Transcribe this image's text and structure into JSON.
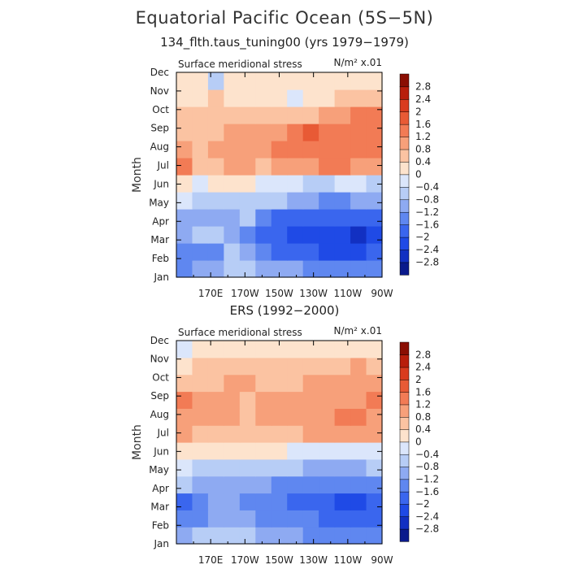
{
  "figure": {
    "title": "Equatorial Pacific Ocean (5S−5N)"
  },
  "chart_data": [
    {
      "type": "heatmap",
      "title": "134_flth.taus_tuning00 (yrs 1979−1979)",
      "inner_title": "Surface meridional stress",
      "units": "N/m² x.01",
      "ylabel": "Month",
      "x_ticks": [
        "170E",
        "170W",
        "150W",
        "130W",
        "110W",
        "90W"
      ],
      "y_ticks": [
        "Jan",
        "Feb",
        "Mar",
        "Apr",
        "May",
        "Jun",
        "Jul",
        "Aug",
        "Sep",
        "Oct",
        "Nov",
        "Dec"
      ],
      "colorbar_labels": [
        "2.8",
        "2.4",
        "2",
        "1.6",
        "1.2",
        "0.8",
        "0.4",
        "0",
        "−0.4",
        "−0.8",
        "−1.2",
        "−1.6",
        "−2",
        "−2.4",
        "−2.8"
      ],
      "colorbar_levels": [
        -2.8,
        -2.4,
        -2.0,
        -1.6,
        -1.2,
        -0.8,
        -0.4,
        0,
        0.4,
        0.8,
        1.2,
        1.6,
        2.0,
        2.4,
        2.8
      ],
      "colors": [
        "#0a1a8c",
        "#1230c2",
        "#1f4ae6",
        "#3a66ee",
        "#5f87f0",
        "#8eaaf2",
        "#b7cdf6",
        "#dbe6fb",
        "#fde3cd",
        "#fbc3a2",
        "#f7a07a",
        "#f27b55",
        "#e85a35",
        "#d93b1e",
        "#b81e0b",
        "#8a0e02"
      ],
      "lon_columns": [
        "150E",
        "160E",
        "170E",
        "180",
        "170W",
        "160W",
        "150W",
        "140W",
        "130W",
        "120W",
        "110W",
        "100W",
        "90W"
      ],
      "months": [
        "Jan",
        "Feb",
        "Mar",
        "Apr",
        "May",
        "Jun",
        "Jul",
        "Aug",
        "Sep",
        "Oct",
        "Nov",
        "Dec"
      ],
      "values": [
        [
          -1.5,
          -1.2,
          -0.9,
          -0.6,
          -0.7,
          -0.9,
          -1.2,
          -1.2,
          -1.5,
          -1.5,
          -1.6,
          -1.6,
          -1.4
        ],
        [
          -1.6,
          -1.3,
          -1.3,
          -0.8,
          -1.2,
          -1.5,
          -1.7,
          -1.9,
          -2.0,
          -2.1,
          -2.1,
          -2.2,
          -2.0
        ],
        [
          -1.2,
          -0.5,
          -0.7,
          -1.0,
          -1.3,
          -1.7,
          -2.0,
          -2.2,
          -2.3,
          -2.3,
          -2.4,
          -2.6,
          -2.3
        ],
        [
          -0.9,
          -0.9,
          -1.0,
          -1.0,
          -0.7,
          -1.3,
          -1.7,
          -1.9,
          -2.0,
          -1.9,
          -1.9,
          -1.8,
          -1.7
        ],
        [
          -0.4,
          -0.5,
          -0.5,
          -0.5,
          -0.6,
          -0.7,
          -0.7,
          -1.0,
          -1.2,
          -1.3,
          -1.3,
          -1.2,
          -1.1
        ],
        [
          0.2,
          -0.3,
          0.1,
          0.2,
          0.2,
          -0.1,
          -0.2,
          -0.4,
          -0.5,
          -0.5,
          -0.4,
          -0.4,
          -0.5
        ],
        [
          1.2,
          0.6,
          0.6,
          0.9,
          0.8,
          0.7,
          0.8,
          0.9,
          1.0,
          1.4,
          1.3,
          1.1,
          1.0
        ],
        [
          0.8,
          0.7,
          0.8,
          0.9,
          0.9,
          1.0,
          1.2,
          1.3,
          1.4,
          1.3,
          1.4,
          1.4,
          1.5
        ],
        [
          0.5,
          0.6,
          0.7,
          0.8,
          0.9,
          0.9,
          1.0,
          1.2,
          1.6,
          1.5,
          1.2,
          1.3,
          1.4
        ],
        [
          0.4,
          0.5,
          0.5,
          0.7,
          0.7,
          0.6,
          0.5,
          0.6,
          0.7,
          0.8,
          0.9,
          1.2,
          1.4
        ],
        [
          0.3,
          0.3,
          0.4,
          0.3,
          0.3,
          0.3,
          0.2,
          -0.1,
          0.2,
          0.3,
          0.4,
          0.5,
          0.6
        ],
        [
          0.1,
          0.3,
          -0.6,
          0.1,
          0.2,
          0.1,
          0.0,
          0.0,
          0.1,
          0.2,
          0.2,
          0.3,
          0.3
        ]
      ]
    },
    {
      "type": "heatmap",
      "title": "ERS (1992−2000)",
      "inner_title": "Surface meridional stress",
      "units": "N/m² x.01",
      "ylabel": "Month",
      "x_ticks": [
        "170E",
        "170W",
        "150W",
        "130W",
        "110W",
        "90W"
      ],
      "y_ticks": [
        "Jan",
        "Feb",
        "Mar",
        "Apr",
        "May",
        "Jun",
        "Jul",
        "Aug",
        "Sep",
        "Oct",
        "Nov",
        "Dec"
      ],
      "colorbar_labels": [
        "2.8",
        "2.4",
        "2",
        "1.6",
        "1.2",
        "0.8",
        "0.4",
        "0",
        "−0.4",
        "−0.8",
        "−1.2",
        "−1.6",
        "−2",
        "−2.4",
        "−2.8"
      ],
      "colorbar_levels": [
        -2.8,
        -2.4,
        -2.0,
        -1.6,
        -1.2,
        -0.8,
        -0.4,
        0,
        0.4,
        0.8,
        1.2,
        1.6,
        2.0,
        2.4,
        2.8
      ],
      "colors": [
        "#0a1a8c",
        "#1230c2",
        "#1f4ae6",
        "#3a66ee",
        "#5f87f0",
        "#8eaaf2",
        "#b7cdf6",
        "#dbe6fb",
        "#fde3cd",
        "#fbc3a2",
        "#f7a07a",
        "#f27b55",
        "#e85a35",
        "#d93b1e",
        "#b81e0b",
        "#8a0e02"
      ],
      "lon_columns": [
        "150E",
        "160E",
        "170E",
        "180",
        "170W",
        "160W",
        "150W",
        "140W",
        "130W",
        "120W",
        "110W",
        "100W",
        "90W"
      ],
      "months": [
        "Jan",
        "Feb",
        "Mar",
        "Apr",
        "May",
        "Jun",
        "Jul",
        "Aug",
        "Sep",
        "Oct",
        "Nov",
        "Dec"
      ],
      "values": [
        [
          -1.0,
          -0.8,
          -0.7,
          -0.6,
          -0.8,
          -0.9,
          -1.1,
          -1.2,
          -1.3,
          -1.3,
          -1.4,
          -1.5,
          -1.4
        ],
        [
          -1.6,
          -1.3,
          -1.2,
          -1.1,
          -1.2,
          -1.3,
          -1.4,
          -1.5,
          -1.6,
          -1.7,
          -1.8,
          -1.9,
          -1.8
        ],
        [
          -1.7,
          -1.3,
          -1.0,
          -1.1,
          -1.3,
          -1.5,
          -1.6,
          -1.7,
          -1.8,
          -2.0,
          -2.1,
          -2.2,
          -2.0
        ],
        [
          -0.8,
          -0.9,
          -1.0,
          -1.0,
          -1.0,
          -1.2,
          -1.3,
          -1.5,
          -1.5,
          -1.4,
          -1.5,
          -1.6,
          -1.4
        ],
        [
          -0.4,
          -0.5,
          -0.5,
          -0.5,
          -0.5,
          -0.6,
          -0.7,
          -0.8,
          -0.9,
          -0.9,
          -0.9,
          -0.9,
          -0.8
        ],
        [
          0.2,
          0.1,
          0.2,
          0.1,
          0.0,
          0.1,
          0.0,
          -0.1,
          -0.2,
          -0.3,
          -0.3,
          -0.4,
          -0.3
        ],
        [
          0.8,
          0.6,
          0.7,
          0.6,
          0.5,
          0.7,
          0.6,
          0.7,
          0.8,
          0.9,
          1.0,
          1.1,
          1.0
        ],
        [
          0.9,
          0.8,
          0.9,
          0.8,
          0.7,
          0.8,
          0.9,
          0.8,
          0.9,
          1.0,
          1.2,
          1.2,
          1.1
        ],
        [
          1.2,
          0.9,
          0.8,
          0.8,
          0.7,
          0.8,
          0.9,
          0.9,
          1.0,
          0.9,
          1.0,
          1.0,
          1.3
        ],
        [
          0.7,
          0.6,
          0.7,
          0.8,
          0.8,
          0.6,
          0.7,
          0.6,
          0.8,
          0.9,
          0.9,
          0.9,
          1.0
        ],
        [
          0.3,
          0.4,
          0.5,
          0.5,
          0.6,
          0.5,
          0.4,
          0.5,
          0.6,
          0.7,
          0.7,
          0.8,
          0.7
        ],
        [
          -0.2,
          0.0,
          0.1,
          0.2,
          0.3,
          0.2,
          0.1,
          0.2,
          0.1,
          0.2,
          0.3,
          0.2,
          0.2
        ]
      ]
    }
  ]
}
